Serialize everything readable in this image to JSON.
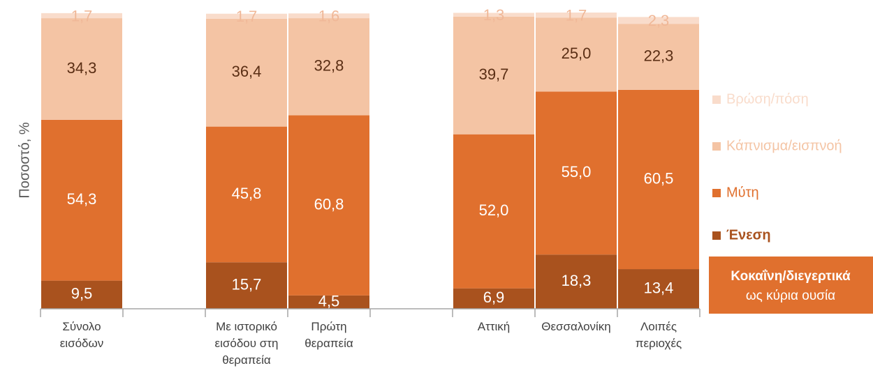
{
  "chart_data": {
    "type": "stacked_bar",
    "y_label": "Ποσοστό, %",
    "categories": [
      "Σύνολο εισόδων",
      null,
      "Με ιστορικό εισόδου στη θεραπεία",
      "Πρώτη θεραπεία",
      null,
      "Αττική",
      "Θεσσαλονίκη",
      "Λοιπές περιοχές"
    ],
    "series": [
      {
        "name": "Ένεση",
        "color": "#a9521e",
        "label_color": "#ffffff",
        "values": [
          9.5,
          null,
          15.7,
          4.5,
          null,
          6.9,
          18.3,
          13.4
        ],
        "value_labels": [
          "9,5",
          null,
          "15,7",
          "4,5",
          null,
          "6,9",
          "18,3",
          "13,4"
        ]
      },
      {
        "name": "Μύτη",
        "color": "#e0702e",
        "label_color": "#ffffff",
        "values": [
          54.3,
          null,
          45.8,
          60.8,
          null,
          52.0,
          55.0,
          60.5
        ],
        "value_labels": [
          "54,3",
          null,
          "45,8",
          "60,8",
          null,
          "52,0",
          "55,0",
          "60,5"
        ]
      },
      {
        "name": "Κάπνισμα/εισπνοή",
        "color": "#f4c4a4",
        "label_color": "#5a2e14",
        "values": [
          34.3,
          null,
          36.4,
          32.8,
          null,
          39.7,
          25.0,
          22.3
        ],
        "value_labels": [
          "34,3",
          null,
          "36,4",
          "32,8",
          null,
          "39,7",
          "25,0",
          "22,3"
        ]
      },
      {
        "name": "Βρώση/πόση",
        "color": "#f9dccb",
        "label_color": "#f0b898",
        "values": [
          1.7,
          null,
          1.7,
          1.6,
          null,
          1.3,
          1.7,
          2.3
        ],
        "value_labels": [
          "1,7",
          null,
          "1,7",
          "1,6",
          null,
          "1,3",
          "1,7",
          "2,3"
        ]
      }
    ],
    "ylim": [
      0,
      100
    ],
    "annotation": {
      "title": "Κοκαΐνη/διεγερτικά",
      "subtitle": "ως κύρια ουσία",
      "color": "#e0702e"
    }
  }
}
